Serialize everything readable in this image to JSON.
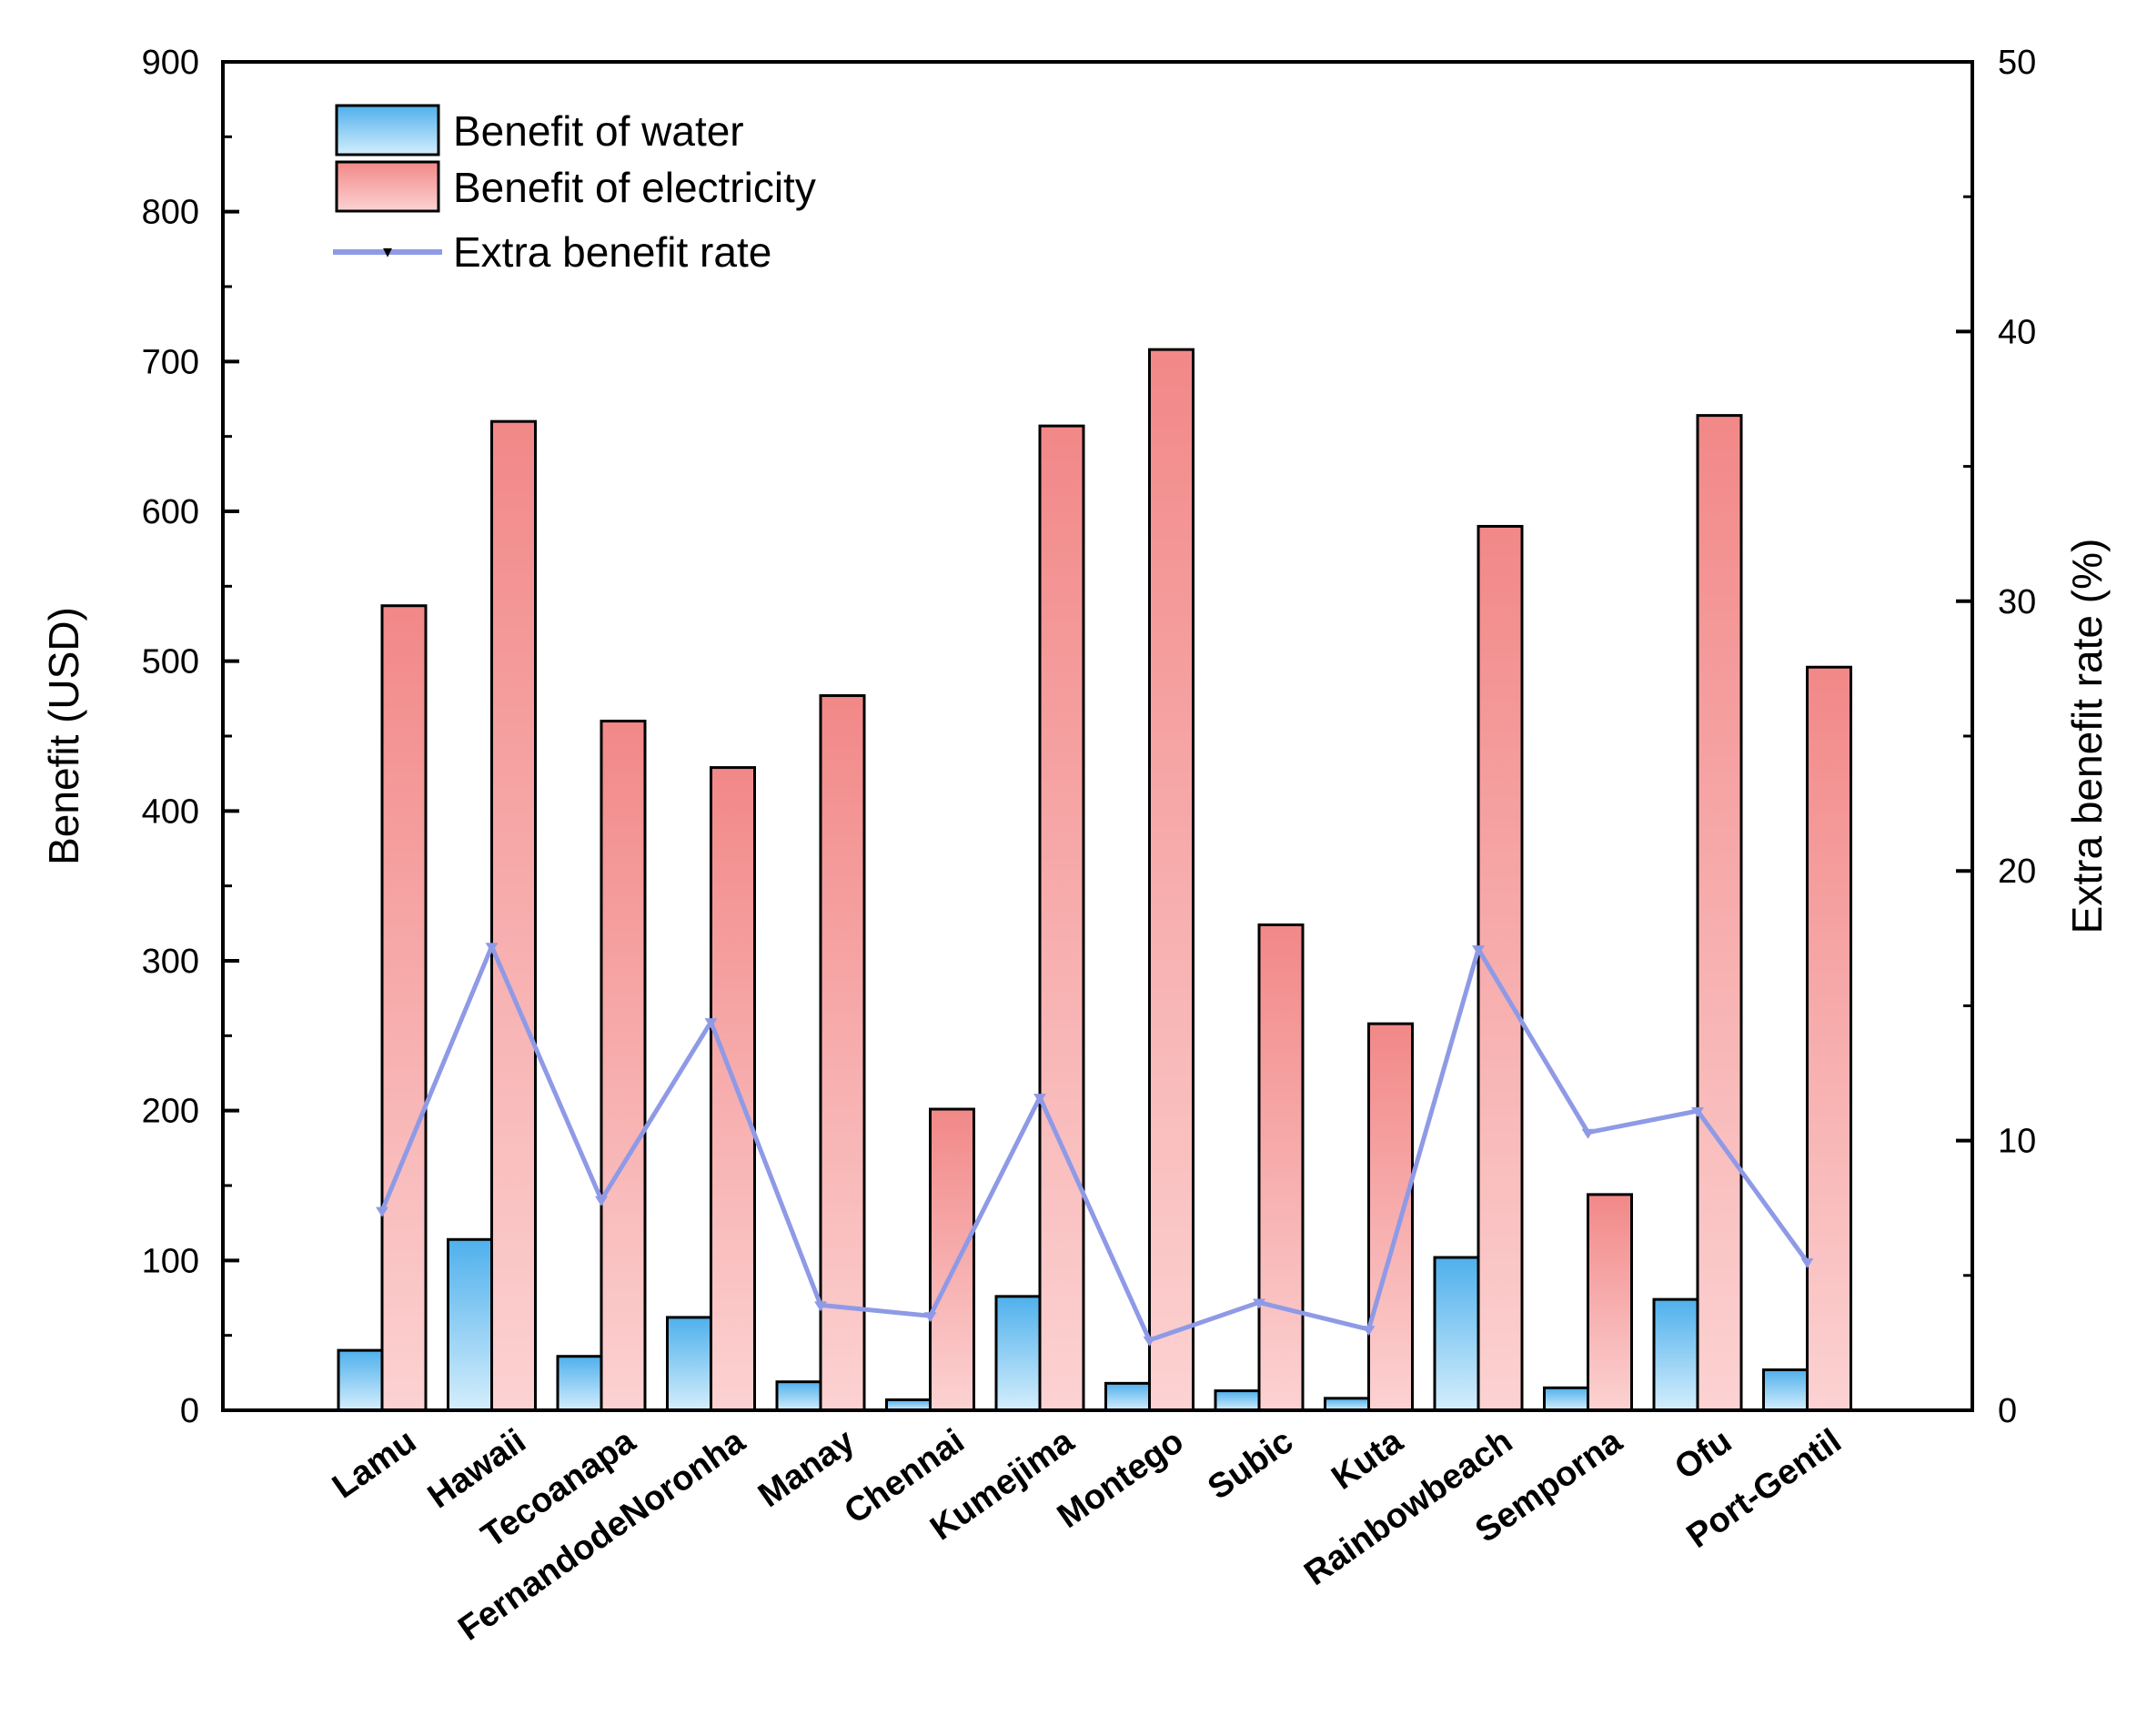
{
  "chart_data": {
    "type": "bar",
    "title": "",
    "xlabel": "",
    "ylabel": "Benefit (USD)",
    "y2label": "Extra benefit rate (%)",
    "ylim": [
      0,
      900
    ],
    "y2lim": [
      0,
      50
    ],
    "yticks": [
      0,
      100,
      200,
      300,
      400,
      500,
      600,
      700,
      800,
      900
    ],
    "y2ticks": [
      0,
      10,
      20,
      30,
      40,
      50
    ],
    "categories": [
      "Lamu",
      "Hawaii",
      "Tecoanapa",
      "FernandodeNoronha",
      "Manay",
      "Chennai",
      "Kumejima",
      "Montego",
      "Subic",
      "Kuta",
      "Rainbowbeach",
      "Semporna",
      "Ofu",
      "Port-Gentil"
    ],
    "series": [
      {
        "name": "Benefit of water",
        "type": "bar",
        "axis": "left",
        "color": "#5bb8ee",
        "values": [
          40,
          114,
          36,
          62,
          19,
          7,
          76,
          18,
          13,
          8,
          102,
          15,
          74,
          27
        ]
      },
      {
        "name": "Benefit of electricity",
        "type": "bar",
        "axis": "left",
        "color": "#f28c8c",
        "values": [
          537,
          660,
          460,
          429,
          477,
          201,
          657,
          708,
          324,
          258,
          590,
          144,
          664,
          496
        ]
      },
      {
        "name": "Extra benefit rate",
        "type": "line",
        "axis": "right",
        "color": "#8f9ae6",
        "values": [
          7.4,
          17.2,
          7.8,
          14.4,
          3.9,
          3.5,
          11.6,
          2.6,
          4.0,
          3.0,
          17.1,
          10.3,
          11.1,
          5.5
        ]
      }
    ],
    "legend": "top-left",
    "grid": false
  }
}
